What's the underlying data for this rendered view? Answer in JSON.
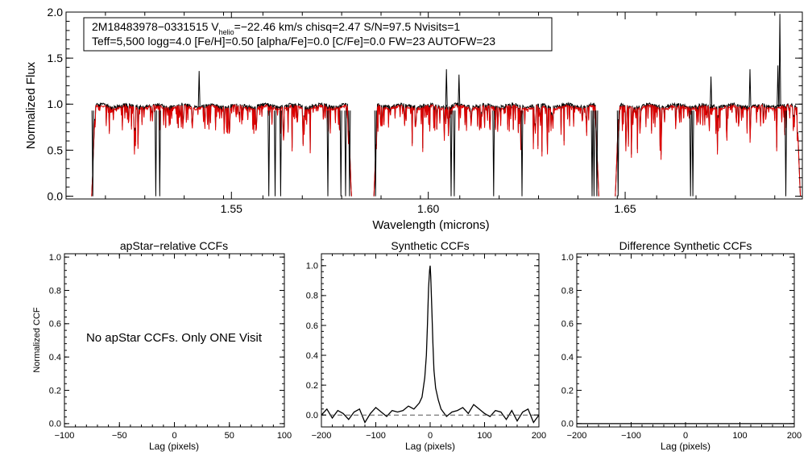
{
  "chart_data": [
    {
      "id": "spectrum",
      "type": "line",
      "info_box": {
        "line1": "2M18483978−0331515  V",
        "vsub": "helio",
        "line1_rest": "=−22.46 km/s  chisq=2.47  S/N=97.5  Nvisits=1",
        "line2": "Teff=5,500 logg=4.0 [Fe/H]=0.50 [alpha/Fe]=0.0 [C/Fe]=0.0 FW=23 AUTOFW=23"
      },
      "xlabel": "Wavelength (microns)",
      "ylabel": "Normalized Flux",
      "xlim": [
        1.508,
        1.695
      ],
      "ylim": [
        -0.03,
        2.0
      ],
      "xticks": [
        1.55,
        1.6,
        1.65
      ],
      "xtick_labels": [
        "1.55",
        "1.60",
        "1.65"
      ],
      "yticks": [
        0.0,
        0.5,
        1.0,
        1.5,
        2.0
      ],
      "ytick_labels": [
        "0.0",
        "0.5",
        "1.0",
        "1.5",
        "2.0"
      ],
      "chips": [
        [
          1.5145,
          1.5805
        ],
        [
          1.5862,
          1.6433
        ],
        [
          1.6475,
          1.6945
        ]
      ],
      "series": [
        {
          "color": "#000000",
          "deep_lines": [
            1.5148,
            1.5308,
            1.5318,
            1.5595,
            1.5611,
            1.5625,
            1.5745,
            1.5778,
            1.579,
            1.58,
            1.5866,
            1.6058,
            1.6066,
            1.6166,
            1.6238,
            1.6416,
            1.6421,
            1.6428,
            1.6482,
            1.6666,
            1.6672,
            1.6908
          ],
          "spikes": [
            [
              1.5418,
              1.36
            ],
            [
              1.6046,
              1.38
            ],
            [
              1.6078,
              1.32
            ],
            [
              1.6718,
              1.3
            ],
            [
              1.6817,
              1.38
            ],
            [
              1.6888,
              1.42
            ],
            [
              1.6893,
              1.98
            ]
          ]
        },
        {
          "color": "#dd0000"
        }
      ]
    },
    {
      "id": "apstar_ccf",
      "type": "line",
      "title": "apStar−relative CCFs",
      "xlabel": "Lag (pixels)",
      "ylabel": "Normalized CCF",
      "xlim": [
        -100,
        100
      ],
      "ylim": [
        -0.02,
        1.02
      ],
      "xticks": [
        -100,
        -50,
        0,
        50,
        100
      ],
      "xtick_labels": [
        "−100",
        "−50",
        "0",
        "50",
        "100"
      ],
      "yticks": [
        0.0,
        0.2,
        0.4,
        0.6,
        0.8,
        1.0
      ],
      "ytick_labels": [
        "0.0",
        "0.2",
        "0.4",
        "0.6",
        "0.8",
        "1.0"
      ],
      "note": "No apStar CCFs.  Only ONE Visit"
    },
    {
      "id": "synthetic_ccf",
      "type": "line",
      "title": "Synthetic CCFs",
      "xlabel": "Lag (pixels)",
      "xlim": [
        -200,
        200
      ],
      "ylim": [
        -0.08,
        1.08
      ],
      "xticks": [
        -200,
        -100,
        0,
        100,
        200
      ],
      "xtick_labels": [
        "−200",
        "−100",
        "0",
        "100",
        "200"
      ],
      "yticks": [
        0.0,
        0.2,
        0.4,
        0.6,
        0.8,
        1.0
      ],
      "ytick_labels": [
        "0.0",
        "0.2",
        "0.4",
        "0.6",
        "0.8",
        "1.0"
      ],
      "series": [
        {
          "style": "solid",
          "x": [
            -200,
            -190,
            -180,
            -170,
            -160,
            -150,
            -140,
            -130,
            -120,
            -110,
            -100,
            -90,
            -80,
            -70,
            -60,
            -50,
            -40,
            -30,
            -20,
            -15,
            -10,
            -7,
            -5,
            -3,
            -1,
            0,
            1,
            3,
            5,
            7,
            10,
            15,
            20,
            30,
            40,
            50,
            60,
            70,
            80,
            90,
            100,
            110,
            120,
            130,
            140,
            150,
            160,
            170,
            180,
            190,
            200
          ],
          "y": [
            0.0,
            0.04,
            -0.02,
            0.03,
            0.01,
            -0.03,
            0.02,
            0.04,
            -0.05,
            0.01,
            0.05,
            0.02,
            -0.01,
            0.03,
            0.02,
            0.03,
            0.06,
            0.04,
            0.08,
            0.12,
            0.25,
            0.4,
            0.6,
            0.85,
            0.97,
            1.0,
            0.93,
            0.72,
            0.48,
            0.3,
            0.18,
            0.1,
            0.04,
            -0.01,
            0.02,
            0.03,
            0.05,
            0.01,
            0.07,
            0.04,
            0.01,
            -0.01,
            0.03,
            0.02,
            -0.03,
            0.03,
            -0.04,
            0.02,
            0.04,
            -0.05,
            0.0
          ]
        },
        {
          "style": "dashed",
          "x": [
            -200,
            200
          ],
          "y": [
            0.0,
            0.0
          ]
        }
      ]
    },
    {
      "id": "diff_ccf",
      "type": "line",
      "title": "Difference Synthetic CCFs",
      "xlabel": "Lag (pixels)",
      "xlim": [
        -200,
        200
      ],
      "ylim": [
        -0.02,
        1.02
      ],
      "xticks": [
        -200,
        -100,
        0,
        100,
        200
      ],
      "xtick_labels": [
        "−200",
        "−100",
        "0",
        "100",
        "200"
      ],
      "yticks": [
        0.0,
        0.2,
        0.4,
        0.6,
        0.8,
        1.0
      ],
      "ytick_labels": [
        "0.0",
        "0.2",
        "0.4",
        "0.6",
        "0.8",
        "1.0"
      ],
      "series": [
        {
          "style": "solid",
          "x": [
            -200,
            200
          ],
          "y": [
            0.0,
            0.0
          ]
        }
      ]
    }
  ]
}
